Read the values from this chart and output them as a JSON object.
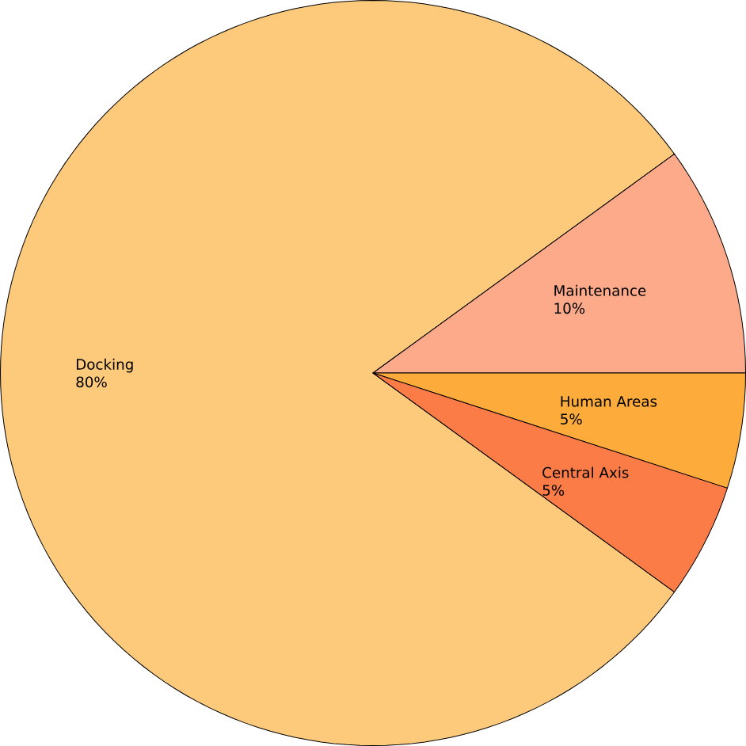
{
  "chart_data": {
    "type": "pie",
    "categories": [
      "Docking",
      "Maintenance",
      "Human Areas",
      "Central Axis"
    ],
    "values": [
      80,
      10,
      5,
      5
    ],
    "value_labels": [
      "80%",
      "10%",
      "5%",
      "5%"
    ],
    "colors": [
      "#fdc97b",
      "#fcaa8a",
      "#fdac3c",
      "#fc7c48"
    ]
  }
}
